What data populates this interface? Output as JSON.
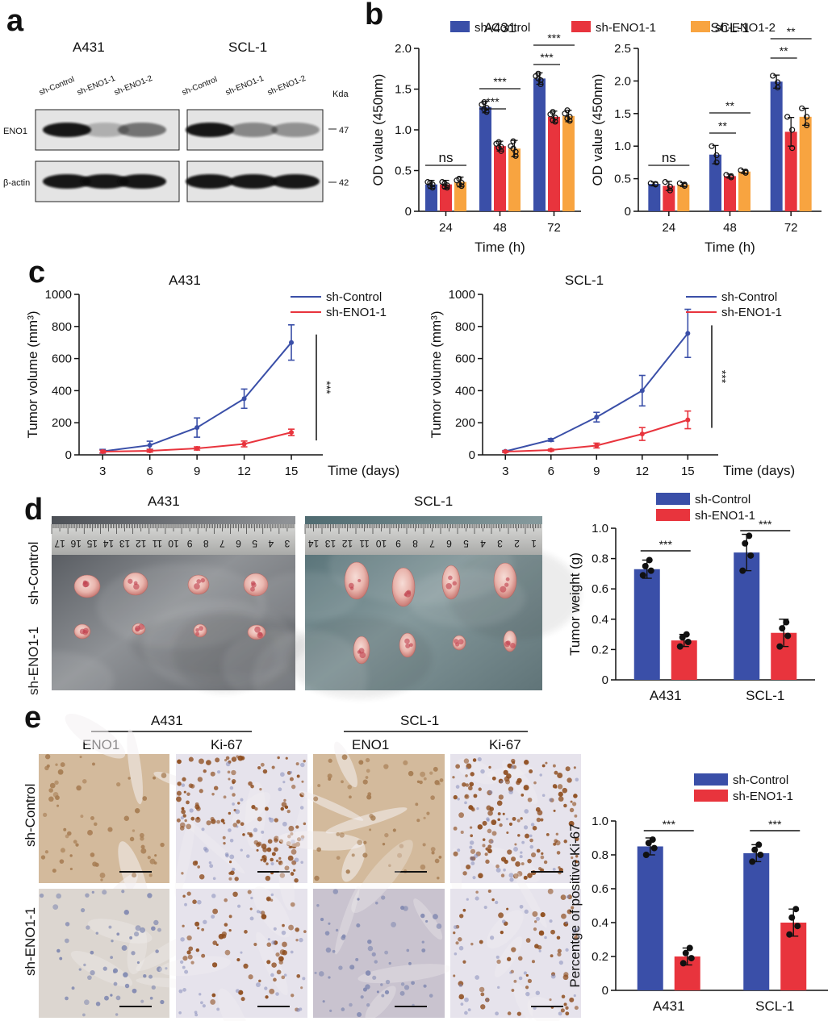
{
  "panels": {
    "a": "a",
    "b": "b",
    "c": "c",
    "d": "d",
    "e": "e"
  },
  "colors": {
    "control": "#3a4fa8",
    "eno1_1": "#e8343d",
    "eno1_2": "#f8a440",
    "blot_bg": "#e4e4e4",
    "tissue_bg": "#e7e3e3"
  },
  "western_blot": {
    "cell_lines": [
      "A431",
      "SCL-1"
    ],
    "lanes": [
      "sh-Control",
      "sh-ENO1-1",
      "sh-ENO1-2"
    ],
    "unit": "Kda",
    "rows": [
      {
        "label": "ENO1",
        "kda": "47",
        "intensity": {
          "A431": [
            1.0,
            0.25,
            0.55
          ],
          "SCL-1": [
            1.0,
            0.45,
            0.4
          ]
        }
      },
      {
        "label": "β-actin",
        "kda": "42",
        "intensity": {
          "A431": [
            1.0,
            1.0,
            1.0
          ],
          "SCL-1": [
            1.0,
            1.0,
            1.0
          ]
        }
      }
    ]
  },
  "chart_data": [
    {
      "id": "b-A431",
      "type": "bar",
      "title": "A431",
      "xlabel": "Time (h)",
      "ylabel": "OD value (450nm)",
      "categories": [
        "24",
        "48",
        "72"
      ],
      "ylim": [
        0,
        2.0
      ],
      "yticks": [
        "0",
        "0.5",
        "1.0",
        "1.5",
        "2.0"
      ],
      "series": [
        {
          "name": "sh-Control",
          "values": [
            0.33,
            1.28,
            1.63
          ],
          "err": [
            0.05,
            0.07,
            0.07
          ],
          "points": [
            [
              0.29,
              0.33,
              0.36,
              0.31,
              0.35
            ],
            [
              1.22,
              1.27,
              1.31,
              1.34,
              1.25
            ],
            [
              1.56,
              1.61,
              1.66,
              1.69,
              1.63
            ]
          ]
        },
        {
          "name": "sh-ENO1-1",
          "values": [
            0.33,
            0.8,
            1.16
          ],
          "err": [
            0.05,
            0.06,
            0.07
          ],
          "points": [
            [
              0.29,
              0.32,
              0.36,
              0.34,
              0.3
            ],
            [
              0.74,
              0.79,
              0.83,
              0.85,
              0.78
            ],
            [
              1.1,
              1.15,
              1.19,
              1.22,
              1.12
            ]
          ]
        },
        {
          "name": "sh-ENO1-2",
          "values": [
            0.36,
            0.77,
            1.17
          ],
          "err": [
            0.06,
            0.1,
            0.07
          ],
          "points": [
            [
              0.31,
              0.35,
              0.38,
              0.4,
              0.33
            ],
            [
              0.68,
              0.73,
              0.8,
              0.86,
              0.77
            ],
            [
              1.11,
              1.16,
              1.2,
              1.24,
              1.14
            ]
          ]
        }
      ],
      "significance": [
        {
          "group": 0,
          "pairs": [
            [
              "sh-Control",
              "sh-ENO1-2"
            ]
          ],
          "text": "ns"
        },
        {
          "group": 1,
          "pairs": [
            [
              "sh-Control",
              "sh-ENO1-1"
            ]
          ],
          "text": "***"
        },
        {
          "group": 1,
          "pairs": [
            [
              "sh-Control",
              "sh-ENO1-2"
            ]
          ],
          "text": "***"
        },
        {
          "group": 2,
          "pairs": [
            [
              "sh-Control",
              "sh-ENO1-1"
            ]
          ],
          "text": "***"
        },
        {
          "group": 2,
          "pairs": [
            [
              "sh-Control",
              "sh-ENO1-2"
            ]
          ],
          "text": "***"
        }
      ]
    },
    {
      "id": "b-SCL-1",
      "type": "bar",
      "title": "SCL-1",
      "xlabel": "Time (h)",
      "ylabel": "OD value (450nm)",
      "categories": [
        "24",
        "48",
        "72"
      ],
      "ylim": [
        0,
        2.5
      ],
      "yticks": [
        "0",
        "0.5",
        "1.0",
        "1.5",
        "2.0",
        "2.5"
      ],
      "series": [
        {
          "name": "sh-Control",
          "values": [
            0.42,
            0.87,
            1.99
          ],
          "err": [
            0.03,
            0.14,
            0.1
          ],
          "points": [
            [
              0.41,
              0.42,
              0.43
            ],
            [
              0.75,
              0.86,
              1.0
            ],
            [
              1.9,
              1.98,
              2.08
            ]
          ]
        },
        {
          "name": "sh-ENO1-1",
          "values": [
            0.39,
            0.54,
            1.22
          ],
          "err": [
            0.07,
            0.03,
            0.22
          ],
          "points": [
            [
              0.32,
              0.38,
              0.45
            ],
            [
              0.52,
              0.54,
              0.56
            ],
            [
              0.97,
              1.25,
              1.45
            ]
          ]
        },
        {
          "name": "sh-ENO1-2",
          "values": [
            0.41,
            0.61,
            1.45
          ],
          "err": [
            0.03,
            0.03,
            0.13
          ],
          "points": [
            [
              0.39,
              0.41,
              0.43
            ],
            [
              0.59,
              0.61,
              0.63
            ],
            [
              1.32,
              1.45,
              1.58
            ]
          ]
        }
      ],
      "significance": [
        {
          "group": 0,
          "pairs": [
            [
              "sh-Control",
              "sh-ENO1-2"
            ]
          ],
          "text": "ns"
        },
        {
          "group": 1,
          "pairs": [
            [
              "sh-Control",
              "sh-ENO1-1"
            ]
          ],
          "text": "**"
        },
        {
          "group": 1,
          "pairs": [
            [
              "sh-Control",
              "sh-ENO1-2"
            ]
          ],
          "text": "**"
        },
        {
          "group": 2,
          "pairs": [
            [
              "sh-Control",
              "sh-ENO1-1"
            ]
          ],
          "text": "**"
        },
        {
          "group": 2,
          "pairs": [
            [
              "sh-Control",
              "sh-ENO1-2"
            ]
          ],
          "text": "**"
        }
      ]
    },
    {
      "id": "c-A431",
      "type": "line",
      "title": "A431",
      "xlabel": "Time (days)",
      "ylabel": "Tumor volume (mm³)",
      "x": [
        3,
        6,
        9,
        12,
        15
      ],
      "xlim": [
        1.5,
        17
      ],
      "ylim": [
        0,
        1000
      ],
      "yticks": [
        "0",
        "200",
        "400",
        "600",
        "800",
        "1000"
      ],
      "series": [
        {
          "name": "sh-Control",
          "values": [
            22,
            60,
            170,
            350,
            700
          ],
          "err": [
            12,
            25,
            60,
            60,
            110
          ]
        },
        {
          "name": "sh-ENO1-1",
          "values": [
            20,
            25,
            40,
            68,
            140
          ],
          "err": [
            8,
            8,
            10,
            18,
            20
          ]
        }
      ],
      "significance": "***"
    },
    {
      "id": "c-SCL-1",
      "type": "line",
      "title": "SCL-1",
      "xlabel": "Time (days)",
      "ylabel": "Tumor volume (mm³)",
      "x": [
        3,
        6,
        9,
        12,
        15
      ],
      "xlim": [
        1.5,
        17
      ],
      "ylim": [
        0,
        1000
      ],
      "yticks": [
        "0",
        "200",
        "400",
        "600",
        "800",
        "1000"
      ],
      "series": [
        {
          "name": "sh-Control",
          "values": [
            22,
            93,
            235,
            400,
            757
          ],
          "err": [
            5,
            8,
            30,
            95,
            150
          ]
        },
        {
          "name": "sh-ENO1-1",
          "values": [
            20,
            30,
            58,
            130,
            218
          ],
          "err": [
            5,
            6,
            15,
            40,
            55
          ]
        }
      ],
      "significance": "***"
    },
    {
      "id": "d-weight",
      "type": "bar",
      "title": "",
      "ylabel": "Tumor weight (g)",
      "xlabel": "",
      "categories": [
        "A431",
        "SCL-1"
      ],
      "ylim": [
        0,
        1.0
      ],
      "yticks": [
        "0",
        "0.2",
        "0.4",
        "0.6",
        "0.8",
        "1.0"
      ],
      "series": [
        {
          "name": "sh-Control",
          "values": [
            0.73,
            0.84
          ],
          "err": [
            0.06,
            0.12
          ],
          "points": [
            [
              0.69,
              0.72,
              0.75,
              0.79
            ],
            [
              0.72,
              0.82,
              0.9,
              0.95
            ]
          ]
        },
        {
          "name": "sh-ENO1-1",
          "values": [
            0.26,
            0.31
          ],
          "err": [
            0.04,
            0.09
          ],
          "points": [
            [
              0.22,
              0.25,
              0.28,
              0.3
            ],
            [
              0.22,
              0.29,
              0.34,
              0.38
            ]
          ]
        }
      ],
      "significance": [
        "***",
        "***"
      ]
    },
    {
      "id": "e-ki67",
      "type": "bar",
      "title": "",
      "ylabel": "Percentge of positive Ki-67",
      "xlabel": "",
      "categories": [
        "A431",
        "SCL-1"
      ],
      "ylim": [
        0,
        1.0
      ],
      "yticks": [
        "0",
        "0.2",
        "0.4",
        "0.6",
        "0.8",
        "1.0"
      ],
      "series": [
        {
          "name": "sh-Control",
          "values": [
            0.85,
            0.81
          ],
          "err": [
            0.05,
            0.05
          ],
          "points": [
            [
              0.8,
              0.84,
              0.87,
              0.89
            ],
            [
              0.76,
              0.8,
              0.83,
              0.86
            ]
          ]
        },
        {
          "name": "sh-ENO1-1",
          "values": [
            0.2,
            0.4
          ],
          "err": [
            0.05,
            0.08
          ],
          "points": [
            [
              0.16,
              0.19,
              0.22,
              0.25
            ],
            [
              0.33,
              0.38,
              0.43,
              0.48
            ]
          ]
        }
      ],
      "significance": [
        "***",
        "***"
      ]
    }
  ],
  "photos": {
    "cell_lines": [
      "A431",
      "SCL-1"
    ],
    "row_labels": [
      "sh-Control",
      "sh-ENO1-1"
    ],
    "ruler_A431": [
      "17",
      "16",
      "15",
      "14",
      "13",
      "12",
      "11",
      "10",
      "9",
      "8",
      "7",
      "6",
      "5",
      "4",
      "3"
    ],
    "ruler_SCL1": [
      "14",
      "13",
      "12",
      "11",
      "10",
      "9",
      "8",
      "7",
      "6",
      "5",
      "4",
      "3",
      "2",
      "1"
    ]
  },
  "ihc": {
    "cell_lines": [
      "A431",
      "SCL-1"
    ],
    "stains": [
      "ENO1",
      "Ki-67",
      "ENO1",
      "Ki-67"
    ],
    "row_labels": [
      "sh-Control",
      "sh-ENO1-1"
    ]
  }
}
